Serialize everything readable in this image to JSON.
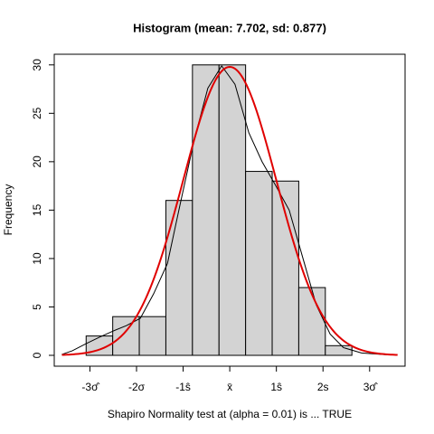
{
  "chart_data": {
    "type": "histogram",
    "title": "Histogram (mean: 7.702, sd: 0.877)",
    "xlabel": "Shapiro Normality test at (alpha = 0.01) is ... TRUE",
    "ylabel": "Frequency",
    "bins": [
      5.0,
      5.5,
      6.0,
      6.5,
      7.0,
      7.5,
      8.0,
      8.5,
      9.0,
      9.5,
      10.0
    ],
    "values": [
      2,
      4,
      4,
      16,
      30,
      30,
      19,
      18,
      7,
      1
    ],
    "bar_color": "#d3d3d3",
    "mean": 7.702,
    "sd": 0.877,
    "normal_color": "#e00000",
    "density": {
      "color": "#000000",
      "x": [
        4.54,
        4.74,
        5.0,
        5.25,
        5.51,
        5.76,
        6.02,
        6.27,
        6.53,
        6.78,
        7.04,
        7.29,
        7.55,
        7.8,
        8.06,
        8.31,
        8.57,
        8.82,
        9.08,
        9.33,
        9.59,
        9.84,
        10.18,
        10.69
      ],
      "values": [
        0.09,
        0.47,
        1.21,
        1.87,
        2.52,
        3.08,
        3.83,
        6.36,
        9.5,
        15.9,
        22.4,
        27.6,
        29.9,
        28.0,
        23.0,
        20.0,
        17.5,
        15.0,
        10.0,
        5.2,
        2.2,
        0.8,
        0.25,
        0.05
      ]
    },
    "xlim": [
      4.4,
      11.0
    ],
    "ylim": [
      -1.12,
      31.1
    ],
    "xticks": [
      {
        "value": 5.071,
        "label": "-3σ̂"
      },
      {
        "value": 5.948,
        "label": "-2σ"
      },
      {
        "value": 6.825,
        "label": "-1ŝ"
      },
      {
        "value": 7.702,
        "label": "x̄"
      },
      {
        "value": 8.579,
        "label": "1ŝ"
      },
      {
        "value": 9.456,
        "label": "2s"
      },
      {
        "value": 10.333,
        "label": "3σ̂"
      }
    ],
    "yticks": [
      0,
      5,
      10,
      15,
      20,
      25,
      30
    ]
  }
}
